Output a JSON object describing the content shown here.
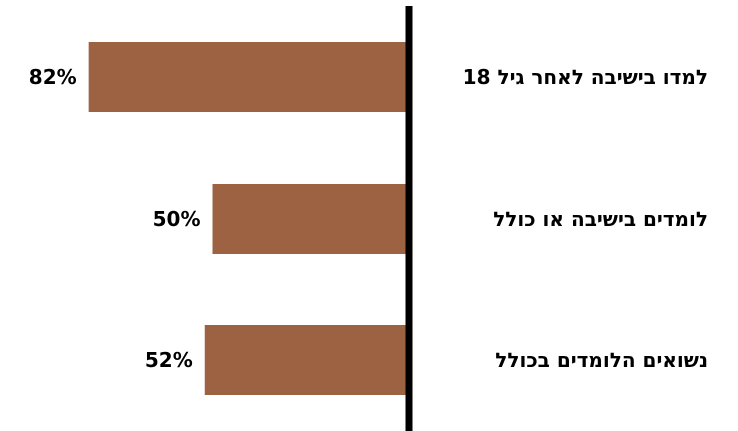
{
  "chart_data": {
    "type": "bar",
    "orientation": "horizontal",
    "direction": "right-to-left",
    "categories": [
      "למדו בישיבה לאחר גיל 18",
      "לומדים בישיבה או כולל",
      "נשואים הלומדים בכולל"
    ],
    "values": [
      82,
      50,
      52
    ],
    "value_labels": [
      "82%",
      "50%",
      "52%"
    ],
    "xlim": [
      0,
      100
    ],
    "title": "",
    "xlabel": "",
    "ylabel": "",
    "grid": false,
    "bar_color": "#9C6242",
    "axis_color": "#000000"
  }
}
